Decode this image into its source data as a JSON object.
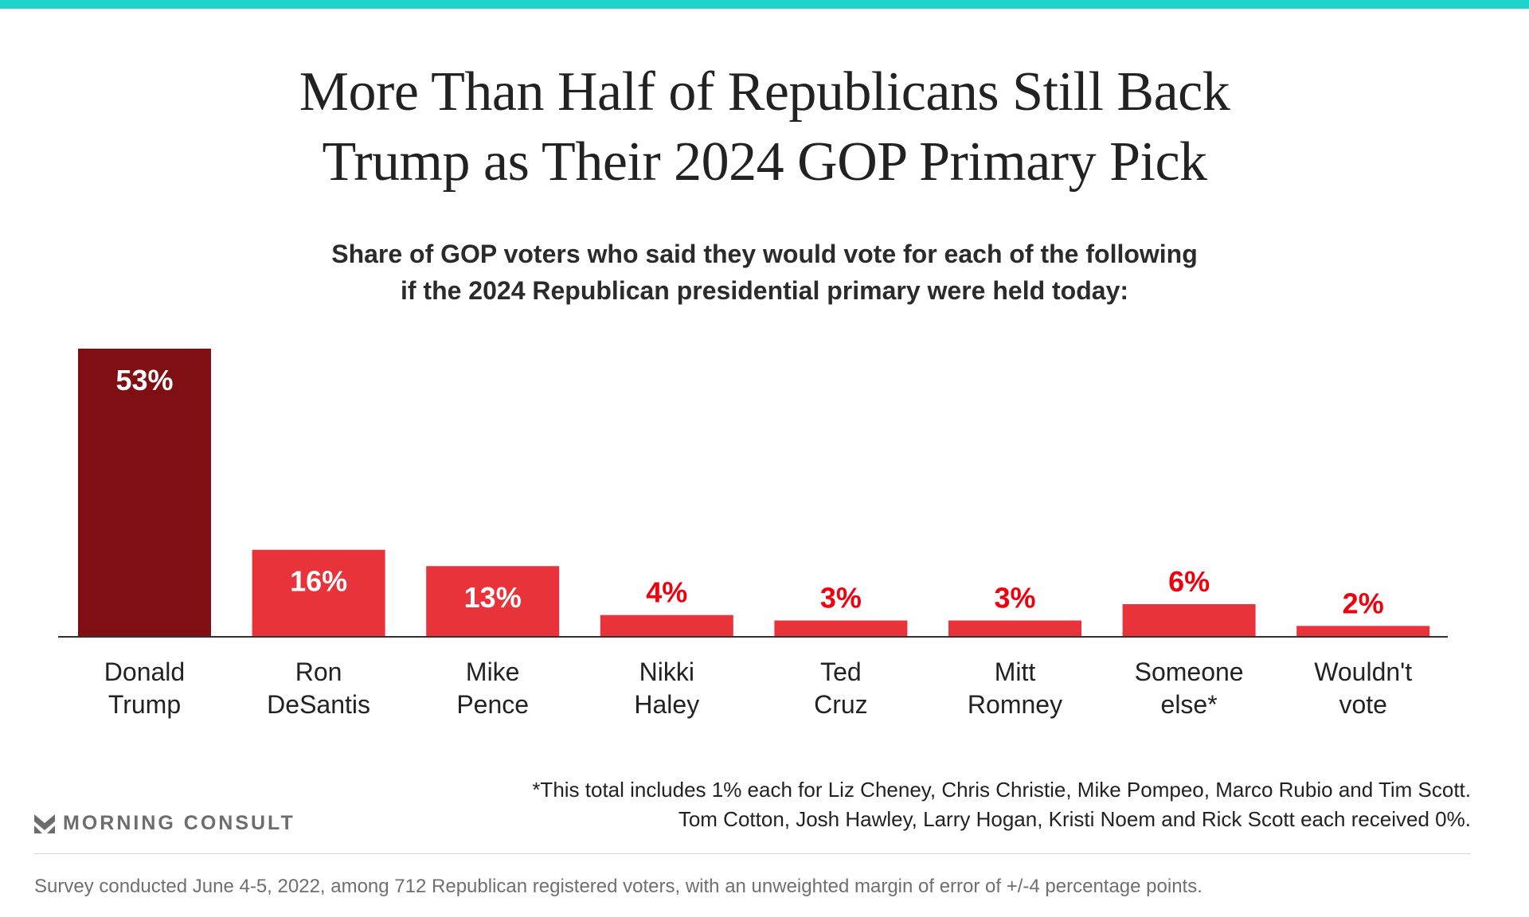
{
  "title_lines": [
    "More Than Half of Republicans Still Back",
    "Trump as Their 2024 GOP Primary Pick"
  ],
  "subtitle_lines": [
    "Share of GOP voters who said they would vote for each of the following",
    "if the 2024 Republican presidential primary were held today:"
  ],
  "colors": {
    "accent_bar": "#1fd3cb",
    "highlight": "#7f0f12",
    "bar": "#e8333a",
    "label_outside": "#f0000f"
  },
  "chart_data": {
    "type": "bar",
    "categories": [
      [
        "Donald",
        "Trump"
      ],
      [
        "Ron",
        "DeSantis"
      ],
      [
        "Mike",
        "Pence"
      ],
      [
        "Nikki",
        "Haley"
      ],
      [
        "Ted",
        "Cruz"
      ],
      [
        "Mitt",
        "Romney"
      ],
      [
        "Someone",
        "else*"
      ],
      [
        "Wouldn't",
        "vote"
      ]
    ],
    "values": [
      53,
      16,
      13,
      4,
      3,
      3,
      6,
      2
    ],
    "value_labels": [
      "53%",
      "16%",
      "13%",
      "4%",
      "3%",
      "3%",
      "6%",
      "2%"
    ],
    "highlight_index": 0,
    "unit": "%",
    "grid": false
  },
  "footnote_lines": [
    "*This total includes 1% each for Liz Cheney, Chris Christie, Mike Pompeo, Marco Rubio and Tim Scott.",
    "Tom Cotton, Josh Hawley, Larry Hogan, Kristi Noem and Rick Scott each received 0%."
  ],
  "logo": "MORNING CONSULT",
  "source": "Survey conducted June 4-5, 2022, among 712 Republican registered voters, with an unweighted margin of error of +/-4 percentage points."
}
